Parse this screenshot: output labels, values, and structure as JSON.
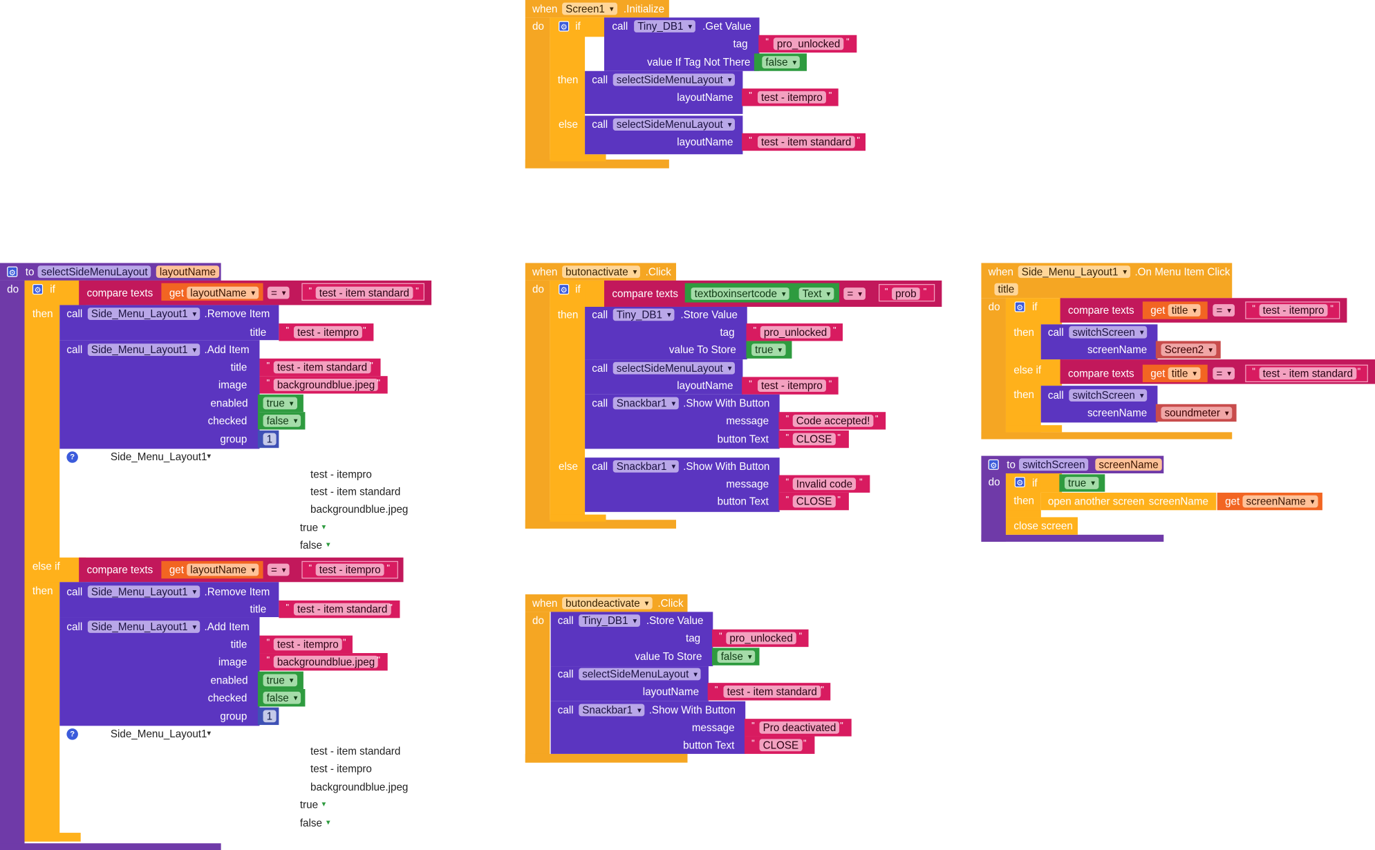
{
  "kw": {
    "when": "when",
    "do": "do",
    "if": "if",
    "then": "then",
    "else": "else",
    "else_if": "else if",
    "call": "call",
    "to": "to",
    "get": "get",
    "compare_texts": "compare texts",
    "eq": "=",
    "open_another_screen": "open another screen",
    "close_screen": "close screen",
    "quote": "\"",
    "true": "true",
    "false": "false"
  },
  "init_event": {
    "component": "Screen1",
    "event": ".Initialize",
    "get_value_component": "Tiny_DB1",
    "get_value_method": ".Get Value",
    "tag_label": "tag",
    "tag_value": "pro_unlocked",
    "default_label": "value If Tag Not There",
    "default_value": "false",
    "proc_name": "selectSideMenuLayout",
    "param_label": "layoutName",
    "then_value": "test - itempro",
    "else_value": "test - item standard"
  },
  "select_proc": {
    "name": "selectSideMenuLayout",
    "param": "layoutName",
    "cond1_value": "test - item standard",
    "cond2_value": "test - itempro",
    "component": "Side_Menu_Layout1",
    "remove_item": ".Remove Item",
    "add_item": ".Add Item",
    "title_label": "title",
    "image_label": "image",
    "enabled_label": "enabled",
    "checked_label": "checked",
    "group_label": "group",
    "group_value": "1",
    "branch1": {
      "remove_title": "test - itempro",
      "add_title": "test - item standard",
      "image": "backgroundblue.jpeg"
    },
    "branch2": {
      "remove_title": "test - item standard",
      "add_title": "test - itempro",
      "image": "backgroundblue.jpeg"
    },
    "comment1": {
      "component": "Side_Menu_Layout1",
      "lines": [
        "test - itempro",
        "test - item standard",
        "backgroundblue.jpeg"
      ]
    },
    "comment2": {
      "component": "Side_Menu_Layout1",
      "lines": [
        "test - item standard",
        "test - itempro",
        "backgroundblue.jpeg"
      ]
    }
  },
  "activate_event": {
    "component": "butonactivate",
    "event": ".Click",
    "textbox": "textboxinsertcode",
    "textbox_prop": "Text",
    "code": "prob",
    "db": "Tiny_DB1",
    "store_value": ".Store Value",
    "tag_label": "tag",
    "tag_value": "pro_unlocked",
    "value_label": "value To Store",
    "value": "true",
    "proc_name": "selectSideMenuLayout",
    "param_label": "layoutName",
    "layout": "test - itempro",
    "snackbar": "Snackbar1",
    "show_with_button": ".Show With Button",
    "message_label": "message",
    "button_label": "button Text",
    "msg_ok": "Code accepted!",
    "msg_bad": "Invalid code",
    "btn": "CLOSE"
  },
  "deactivate_event": {
    "component": "butondeactivate",
    "event": ".Click",
    "db": "Tiny_DB1",
    "store_value": ".Store Value",
    "tag_label": "tag",
    "tag_value": "pro_unlocked",
    "value_label": "value To Store",
    "value": "false",
    "proc_name": "selectSideMenuLayout",
    "param_label": "layoutName",
    "layout": "test - item standard",
    "snackbar": "Snackbar1",
    "show_with_button": ".Show With Button",
    "message_label": "message",
    "button_label": "button Text",
    "msg": "Pro deactivated",
    "btn": "CLOSE"
  },
  "menu_event": {
    "component": "Side_Menu_Layout1",
    "event": ".On Menu Item Click",
    "param": "title",
    "value1": "test - itempro",
    "value2": "test - item standard",
    "proc_name": "switchScreen",
    "param_label": "screenName",
    "screen1": "Screen2",
    "screen2": "soundmeter"
  },
  "switch_proc": {
    "name": "switchScreen",
    "param": "screenName",
    "cond": "true",
    "param_label": "screenName"
  }
}
